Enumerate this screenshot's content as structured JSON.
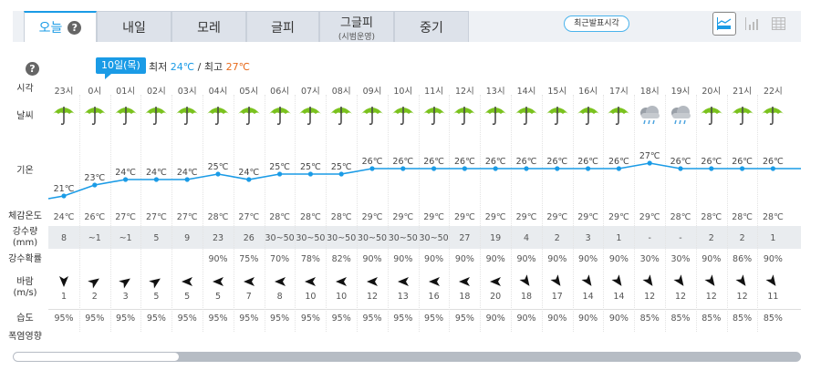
{
  "tabs": [
    {
      "label": "오늘",
      "active": true
    },
    {
      "label": "내일"
    },
    {
      "label": "모레"
    },
    {
      "label": "글피"
    },
    {
      "label": "그글피",
      "sub": "(시범운영)"
    },
    {
      "label": "중기"
    }
  ],
  "recent_button": "최근발표시각",
  "view_buttons": [
    "graph-view-icon",
    "bar-view-icon",
    "table-view-icon"
  ],
  "date_badge": "10일(목)",
  "min_label": "최저",
  "min_temp": "24℃",
  "sep": "/",
  "max_label": "최고",
  "max_temp": "27℃",
  "colors": {
    "accent": "#1a9be6",
    "min": "#1a9be6",
    "max": "#e86b1c",
    "umbrella": "#7ac21e"
  },
  "labels": {
    "time": "시각",
    "weather": "날씨",
    "temp": "기온",
    "feel": "체감온도",
    "rain": "강수량",
    "rain_unit": "(mm)",
    "prob": "강수확률",
    "wind": "바람",
    "wind_unit": "(m/s)",
    "humidity": "습도",
    "heat": "폭염영향"
  },
  "hours": [
    "23시",
    "0시",
    "01시",
    "02시",
    "03시",
    "04시",
    "05시",
    "06시",
    "07시",
    "08시",
    "09시",
    "10시",
    "11시",
    "12시",
    "13시",
    "14시",
    "15시",
    "16시",
    "17시",
    "18시",
    "19시",
    "20시",
    "21시",
    "22시"
  ],
  "weather": [
    "rain",
    "rain",
    "rain",
    "rain",
    "rain",
    "rain",
    "rain",
    "rain",
    "rain",
    "rain",
    "rain",
    "rain",
    "rain",
    "rain",
    "rain",
    "rain",
    "rain",
    "rain",
    "rain",
    "cloudy-rain",
    "cloudy-rain",
    "rain",
    "rain",
    "rain"
  ],
  "temps": [
    21,
    23,
    24,
    24,
    24,
    25,
    24,
    25,
    25,
    25,
    26,
    26,
    26,
    26,
    26,
    26,
    26,
    26,
    26,
    27,
    26,
    26,
    26,
    26
  ],
  "feel": [
    "24℃",
    "26℃",
    "27℃",
    "27℃",
    "27℃",
    "28℃",
    "27℃",
    "28℃",
    "28℃",
    "28℃",
    "29℃",
    "29℃",
    "29℃",
    "29℃",
    "29℃",
    "29℃",
    "29℃",
    "29℃",
    "29℃",
    "29℃",
    "28℃",
    "28℃",
    "28℃",
    "28℃"
  ],
  "rain": [
    "8",
    "~1",
    "~1",
    "5",
    "9",
    "23",
    "26",
    "30~50",
    "30~50",
    "30~50",
    "30~50",
    "30~50",
    "30~50",
    "27",
    "19",
    "4",
    "2",
    "3",
    "1",
    "-",
    "-",
    "2",
    "2",
    "1"
  ],
  "prob": [
    "",
    "",
    "",
    "",
    "",
    "90%",
    "75%",
    "70%",
    "78%",
    "82%",
    "90%",
    "90%",
    "90%",
    "90%",
    "90%",
    "90%",
    "90%",
    "90%",
    "90%",
    "30%",
    "30%",
    "90%",
    "86%",
    "90%"
  ],
  "wind_dir_deg": [
    90,
    -35,
    -35,
    -35,
    180,
    180,
    180,
    180,
    180,
    180,
    180,
    180,
    180,
    180,
    180,
    55,
    55,
    55,
    55,
    55,
    55,
    55,
    55,
    55
  ],
  "wind_speed": [
    "1",
    "2",
    "3",
    "5",
    "5",
    "5",
    "7",
    "8",
    "10",
    "10",
    "12",
    "13",
    "16",
    "18",
    "20",
    "18",
    "17",
    "14",
    "14",
    "12",
    "12",
    "12",
    "12",
    "11"
  ],
  "humidity": [
    "95%",
    "95%",
    "95%",
    "95%",
    "95%",
    "95%",
    "95%",
    "95%",
    "95%",
    "95%",
    "95%",
    "95%",
    "95%",
    "95%",
    "90%",
    "90%",
    "90%",
    "90%",
    "90%",
    "85%",
    "85%",
    "85%",
    "85%",
    "85%"
  ]
}
